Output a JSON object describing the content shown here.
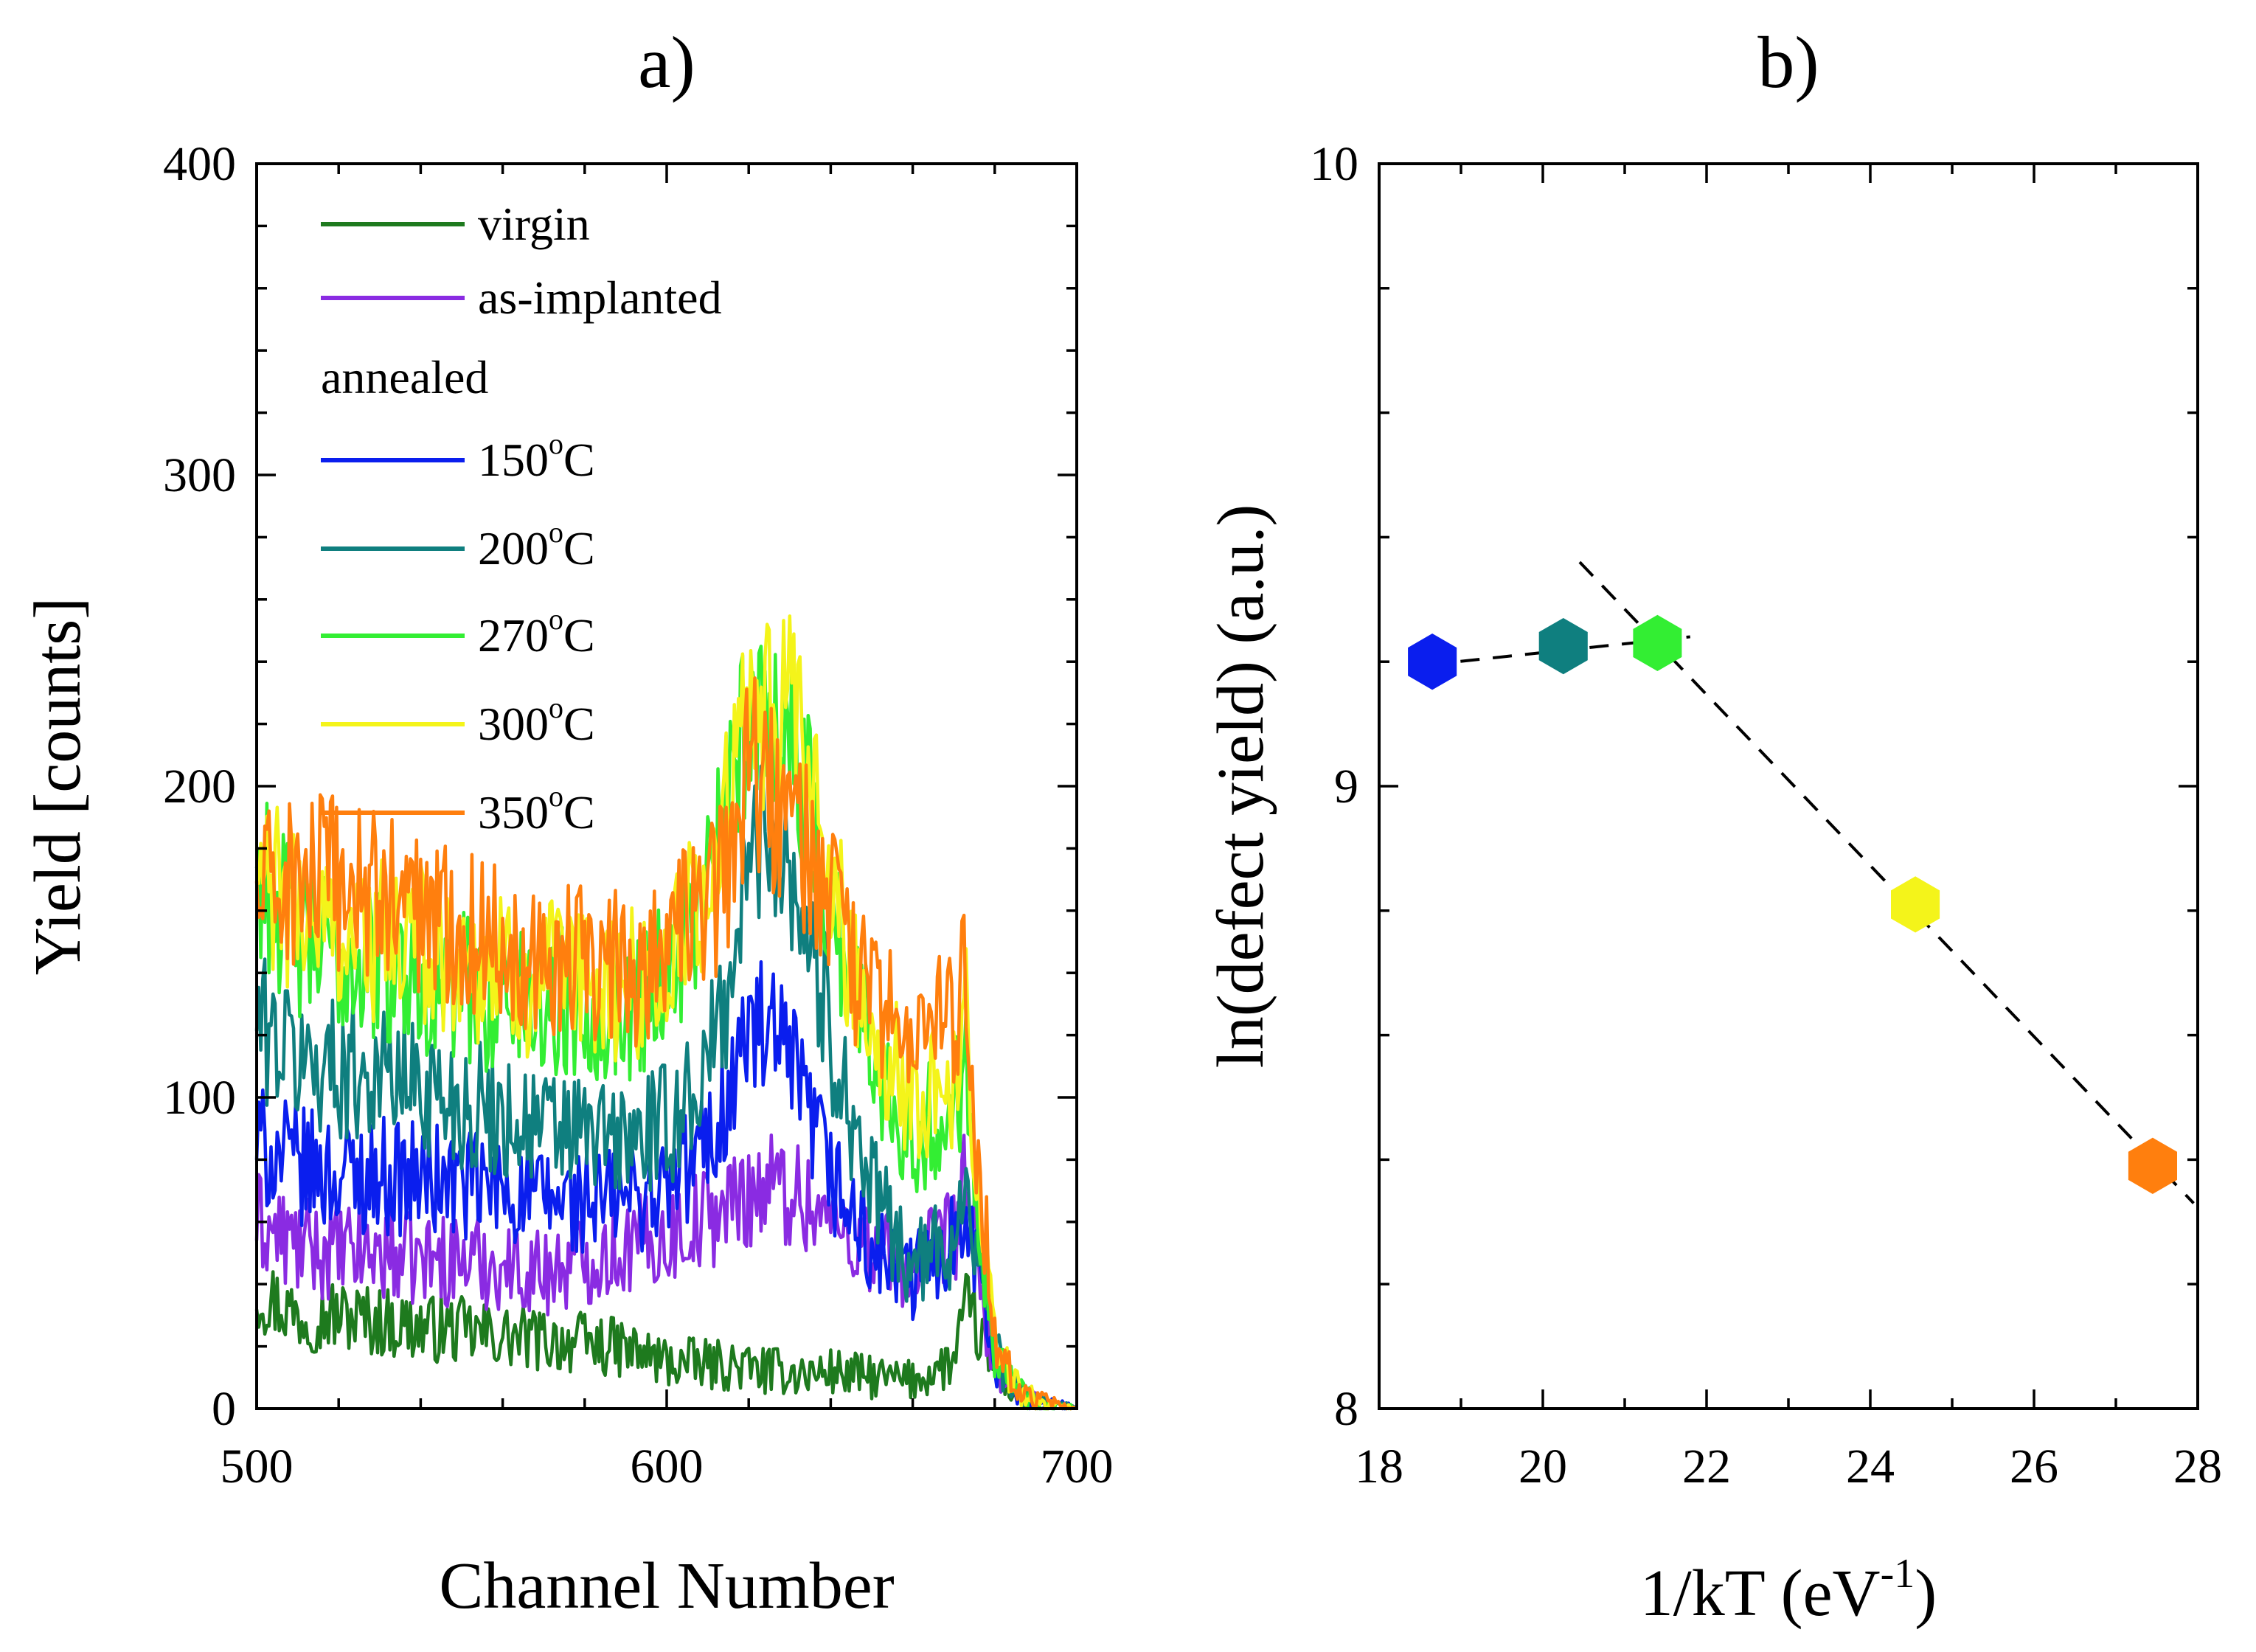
{
  "chart_data": [
    {
      "type": "line",
      "panel_label": "a)",
      "xlabel": "Channel Number",
      "ylabel": "Yield [counts]",
      "xlim": [
        500,
        700
      ],
      "ylim": [
        0,
        400
      ],
      "xticks": [
        500,
        600,
        700
      ],
      "yticks": [
        0,
        100,
        200,
        300,
        400
      ],
      "legend": {
        "position": "top-left",
        "group_label": "annealed",
        "entries": [
          {
            "label": "virgin",
            "sup": "",
            "suffix": "",
            "color": "#1e7a1e"
          },
          {
            "label": "as-implanted",
            "sup": "",
            "suffix": "",
            "color": "#8a2be2"
          },
          {
            "label": "150",
            "sup": "o",
            "suffix": "C",
            "color": "#0a1eee"
          },
          {
            "label": "200",
            "sup": "o",
            "suffix": "C",
            "color": "#0f7f7f"
          },
          {
            "label": "270",
            "sup": "o",
            "suffix": "C",
            "color": "#33ee33"
          },
          {
            "label": "300",
            "sup": "o",
            "suffix": "C",
            "color": "#f4f41a"
          },
          {
            "label": "350",
            "sup": "o",
            "suffix": "C",
            "color": "#ff7f0e"
          }
        ]
      },
      "x": [
        500,
        510,
        520,
        530,
        540,
        550,
        560,
        570,
        580,
        590,
        600,
        610,
        615,
        620,
        625,
        630,
        635,
        640,
        650,
        660,
        670,
        673,
        676,
        680,
        685,
        690,
        695,
        700
      ],
      "series": [
        {
          "name": "virgin",
          "color": "#1e7a1e",
          "values": [
            38,
            30,
            30,
            28,
            26,
            25,
            23,
            22,
            21,
            19,
            15,
            14,
            14,
            13,
            12,
            12,
            11,
            12,
            10,
            9,
            15,
            32,
            25,
            12,
            5,
            2,
            1,
            0
          ]
        },
        {
          "name": "as-implanted",
          "color": "#8a2be2",
          "values": [
            60,
            52,
            50,
            50,
            48,
            48,
            46,
            44,
            48,
            52,
            55,
            62,
            65,
            70,
            72,
            70,
            66,
            60,
            52,
            45,
            55,
            75,
            40,
            15,
            6,
            2,
            1,
            0
          ]
        },
        {
          "name": "150°C",
          "color": "#0a1eee",
          "values": [
            85,
            78,
            75,
            75,
            74,
            72,
            70,
            67,
            66,
            68,
            70,
            85,
            100,
            122,
            118,
            110,
            92,
            75,
            50,
            42,
            55,
            70,
            45,
            15,
            6,
            2,
            1,
            0
          ]
        },
        {
          "name": "200°C",
          "color": "#0f7f7f",
          "values": [
            125,
            112,
            110,
            108,
            104,
            98,
            94,
            90,
            88,
            86,
            90,
            110,
            135,
            175,
            190,
            175,
            150,
            120,
            70,
            45,
            55,
            75,
            50,
            18,
            6,
            2,
            1,
            0
          ]
        },
        {
          "name": "270°C",
          "color": "#33ee33",
          "values": [
            175,
            150,
            145,
            142,
            140,
            135,
            132,
            130,
            130,
            128,
            140,
            165,
            190,
            225,
            230,
            218,
            190,
            160,
            115,
            88,
            95,
            115,
            65,
            20,
            7,
            2,
            1,
            0
          ]
        },
        {
          "name": "300°C",
          "color": "#f4f41a",
          "values": [
            170,
            160,
            155,
            150,
            150,
            145,
            140,
            138,
            137,
            135,
            142,
            168,
            195,
            220,
            225,
            222,
            198,
            168,
            122,
            100,
            105,
            125,
            70,
            22,
            8,
            3,
            1,
            0
          ]
        },
        {
          "name": "350°C",
          "color": "#ff7f0e",
          "values": [
            165,
            170,
            168,
            165,
            160,
            155,
            150,
            146,
            143,
            140,
            150,
            162,
            175,
            210,
            195,
            190,
            178,
            160,
            130,
            120,
            125,
            140,
            80,
            25,
            8,
            3,
            1,
            0
          ]
        }
      ]
    },
    {
      "type": "scatter",
      "panel_label": "b)",
      "xlabel_main": "1/kT (eV",
      "xlabel_sup": "-1",
      "xlabel_end": ")",
      "ylabel": "ln(defect yield) (a.u.)",
      "xlim": [
        18,
        28
      ],
      "ylim": [
        8,
        10
      ],
      "xticks": [
        18,
        20,
        22,
        24,
        26,
        28
      ],
      "yticks": [
        8,
        9,
        10
      ],
      "points": [
        {
          "x": 18.65,
          "y": 9.2,
          "color": "#0a1eee"
        },
        {
          "x": 20.25,
          "y": 9.225,
          "color": "#0f7f7f"
        },
        {
          "x": 21.4,
          "y": 9.23,
          "color": "#33ee33"
        },
        {
          "x": 24.55,
          "y": 8.81,
          "color": "#f4f41a"
        },
        {
          "x": 27.45,
          "y": 8.39,
          "color": "#ff7f0e"
        }
      ],
      "fit_lines": [
        {
          "x": [
            18.6,
            21.8
          ],
          "y": [
            9.195,
            9.24
          ]
        },
        {
          "x": [
            20.45,
            27.95
          ],
          "y": [
            9.36,
            8.33
          ]
        }
      ]
    }
  ]
}
